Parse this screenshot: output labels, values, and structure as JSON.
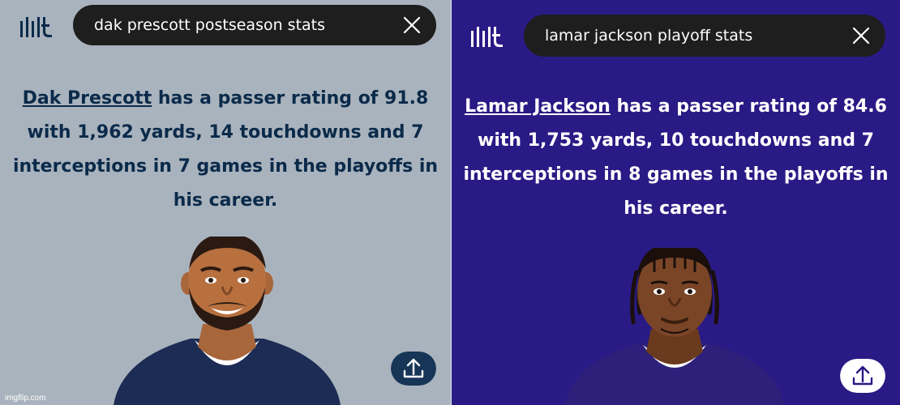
{
  "left": {
    "search_query": "dak prescott postseason stats",
    "player_name": "Dak Prescott",
    "answer_rest": " has a passer rating of 91.8 with 1,962 yards, 14 touchdowns and 7 interceptions in 7 games in the playoffs in his career.",
    "colors": {
      "background": "#a9b3bd",
      "text": "#0b2a4a",
      "jersey": "#1c2c55"
    },
    "icons": [
      "logo-icon",
      "close-icon",
      "share-icon"
    ]
  },
  "right": {
    "search_query": "lamar jackson playoff stats",
    "player_name": "Lamar Jackson",
    "answer_rest": " has a passer rating of 84.6 with 1,753 yards, 10 touchdowns and 7 interceptions in 8 games in the playoffs in his career.",
    "colors": {
      "background": "#2a1a85",
      "text": "#ffffff",
      "jersey": "#2d1f7a"
    },
    "icons": [
      "logo-icon",
      "close-icon",
      "share-icon"
    ]
  },
  "watermark": "imgflip.com"
}
